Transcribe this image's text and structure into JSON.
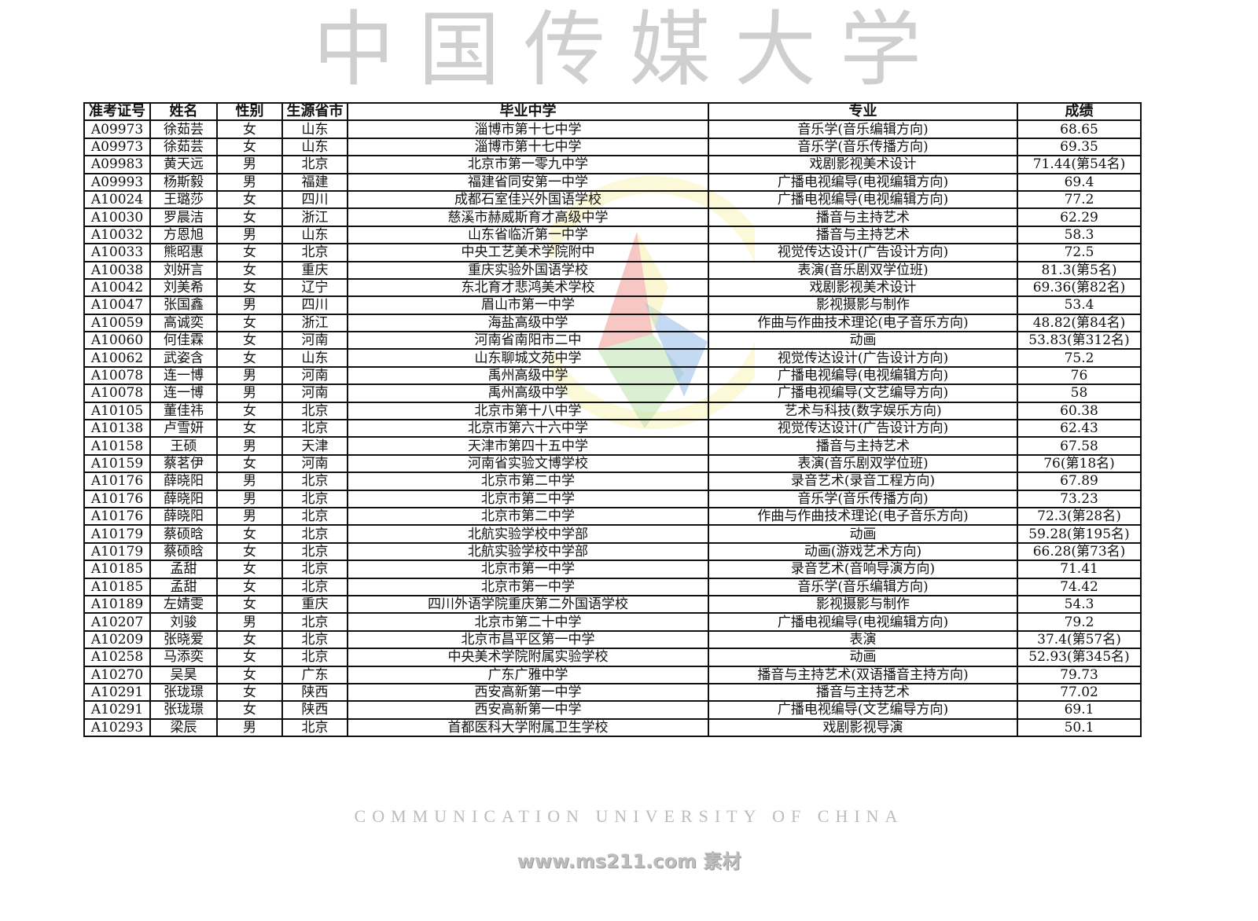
{
  "table": {
    "headers": [
      "准考证号",
      "姓名",
      "性别",
      "生源省市",
      "毕业中学",
      "专业",
      "成绩"
    ],
    "rows": [
      [
        "A09973",
        "徐茹芸",
        "女",
        "山东",
        "淄博市第十七中学",
        "音乐学(音乐编辑方向)",
        "68.65"
      ],
      [
        "A09973",
        "徐茹芸",
        "女",
        "山东",
        "淄博市第十七中学",
        "音乐学(音乐传播方向)",
        "69.35"
      ],
      [
        "A09983",
        "黄天远",
        "男",
        "北京",
        "北京市第一零九中学",
        "戏剧影视美术设计",
        "71.44(第54名)"
      ],
      [
        "A09993",
        "杨斯毅",
        "男",
        "福建",
        "福建省同安第一中学",
        "广播电视编导(电视编辑方向)",
        "69.4"
      ],
      [
        "A10024",
        "王璐莎",
        "女",
        "四川",
        "成都石室佳兴外国语学校",
        "广播电视编导(电视编辑方向)",
        "77.2"
      ],
      [
        "A10030",
        "罗晨洁",
        "女",
        "浙江",
        "慈溪市赫威斯育才高级中学",
        "播音与主持艺术",
        "62.29"
      ],
      [
        "A10032",
        "方恩旭",
        "男",
        "山东",
        "山东省临沂第一中学",
        "播音与主持艺术",
        "58.3"
      ],
      [
        "A10033",
        "熊昭惠",
        "女",
        "北京",
        "中央工艺美术学院附中",
        "视觉传达设计(广告设计方向)",
        "72.5"
      ],
      [
        "A10038",
        "刘妍言",
        "女",
        "重庆",
        "重庆实验外国语学校",
        "表演(音乐剧双学位班)",
        "81.3(第5名)"
      ],
      [
        "A10042",
        "刘美希",
        "女",
        "辽宁",
        "东北育才悲鸿美术学校",
        "戏剧影视美术设计",
        "69.36(第82名)"
      ],
      [
        "A10047",
        "张国鑫",
        "男",
        "四川",
        "眉山市第一中学",
        "影视摄影与制作",
        "53.4"
      ],
      [
        "A10059",
        "高诚奕",
        "女",
        "浙江",
        "海盐高级中学",
        "作曲与作曲技术理论(电子音乐方向)",
        "48.82(第84名)"
      ],
      [
        "A10060",
        "何佳霖",
        "女",
        "河南",
        "河南省南阳市二中",
        "动画",
        "53.83(第312名)"
      ],
      [
        "A10062",
        "武姿含",
        "女",
        "山东",
        "山东聊城文苑中学",
        "视觉传达设计(广告设计方向)",
        "75.2"
      ],
      [
        "A10078",
        "连一博",
        "男",
        "河南",
        "禹州高级中学",
        "广播电视编导(电视编辑方向)",
        "76"
      ],
      [
        "A10078",
        "连一博",
        "男",
        "河南",
        "禹州高级中学",
        "广播电视编导(文艺编导方向)",
        "58"
      ],
      [
        "A10105",
        "董佳祎",
        "女",
        "北京",
        "北京市第十八中学",
        "艺术与科技(数字娱乐方向)",
        "60.38"
      ],
      [
        "A10138",
        "卢雪妍",
        "女",
        "北京",
        "北京市第六十六中学",
        "视觉传达设计(广告设计方向)",
        "62.43"
      ],
      [
        "A10158",
        "王硕",
        "男",
        "天津",
        "天津市第四十五中学",
        "播音与主持艺术",
        "67.58"
      ],
      [
        "A10159",
        "蔡茗伊",
        "女",
        "河南",
        "河南省实验文博学校",
        "表演(音乐剧双学位班)",
        "76(第18名)"
      ],
      [
        "A10176",
        "薛晓阳",
        "男",
        "北京",
        "北京市第二中学",
        "录音艺术(录音工程方向)",
        "67.89"
      ],
      [
        "A10176",
        "薛晓阳",
        "男",
        "北京",
        "北京市第二中学",
        "音乐学(音乐传播方向)",
        "73.23"
      ],
      [
        "A10176",
        "薛晓阳",
        "男",
        "北京",
        "北京市第二中学",
        "作曲与作曲技术理论(电子音乐方向)",
        "72.3(第28名)"
      ],
      [
        "A10179",
        "蔡硕晗",
        "女",
        "北京",
        "北航实验学校中学部",
        "动画",
        "59.28(第195名)"
      ],
      [
        "A10179",
        "蔡硕晗",
        "女",
        "北京",
        "北航实验学校中学部",
        "动画(游戏艺术方向)",
        "66.28(第73名)"
      ],
      [
        "A10185",
        "孟甜",
        "女",
        "北京",
        "北京市第一中学",
        "录音艺术(音响导演方向)",
        "71.41"
      ],
      [
        "A10185",
        "孟甜",
        "女",
        "北京",
        "北京市第一中学",
        "音乐学(音乐编辑方向)",
        "74.42"
      ],
      [
        "A10189",
        "左婧雯",
        "女",
        "重庆",
        "四川外语学院重庆第二外国语学校",
        "影视摄影与制作",
        "54.3"
      ],
      [
        "A10207",
        "刘骏",
        "男",
        "北京",
        "北京市第二十中学",
        "广播电视编导(电视编辑方向)",
        "79.2"
      ],
      [
        "A10209",
        "张晓爱",
        "女",
        "北京",
        "北京市昌平区第一中学",
        "表演",
        "37.4(第57名)"
      ],
      [
        "A10258",
        "马添奕",
        "女",
        "北京",
        "中央美术学院附属实验学校",
        "动画",
        "52.93(第345名)"
      ],
      [
        "A10270",
        "吴昊",
        "女",
        "广东",
        "广东广雅中学",
        "播音与主持艺术(双语播音主持方向)",
        "79.73"
      ],
      [
        "A10291",
        "张珑璟",
        "女",
        "陕西",
        "西安高新第一中学",
        "播音与主持艺术",
        "77.02"
      ],
      [
        "A10291",
        "张珑璟",
        "女",
        "陕西",
        "西安高新第一中学",
        "广播电视编导(文艺编导方向)",
        "69.1"
      ],
      [
        "A10293",
        "梁辰",
        "男",
        "北京",
        "首都医科大学附属卫生学校",
        "戏剧影视导演",
        "50.1"
      ]
    ]
  },
  "watermarks": {
    "seal_text": "UNIVERSITY OF CHINA",
    "calligraphy": "中国传媒大学",
    "english": "COMMUNICATION UNIVERSITY OF CHINA",
    "colors": {
      "red": "#e0453a",
      "yellow": "#f2e15a",
      "blue": "#4a90d9",
      "green": "#6cbf4a"
    }
  },
  "footer": {
    "site_text": "www.ms211.com 素材"
  }
}
